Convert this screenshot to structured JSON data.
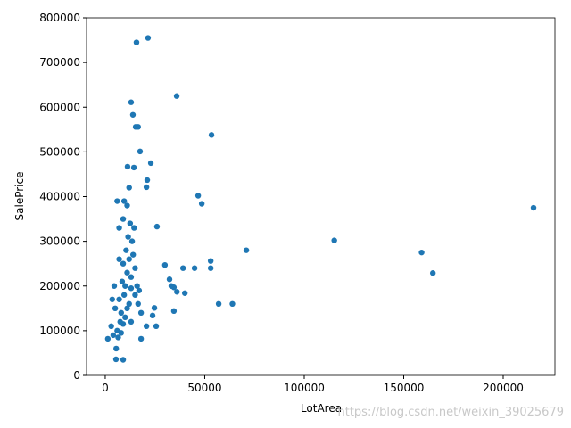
{
  "chart_data": {
    "type": "scatter",
    "x_label": "LotArea",
    "y_label": "SalePrice",
    "watermark": "https://blog.csdn.net/weixin_39025679",
    "color": "#1f77b4",
    "xlim": [
      -9400,
      226000
    ],
    "ylim": [
      0,
      800000
    ],
    "xticks": [
      0,
      50000,
      100000,
      150000,
      200000
    ],
    "yticks": [
      0,
      100000,
      200000,
      300000,
      400000,
      500000,
      600000,
      700000,
      800000
    ],
    "x": [
      215245,
      164660,
      159000,
      115100,
      70900,
      63900,
      57000,
      53400,
      53000,
      53000,
      48500,
      46700,
      44900,
      39100,
      40000,
      35900,
      21500,
      15700,
      13000,
      13900,
      15300,
      16500,
      17500,
      22900,
      21100,
      20700,
      26000,
      34500,
      36000,
      34500,
      32300,
      33200,
      30000,
      24700,
      25600,
      23800,
      20700,
      18000,
      5400,
      9000,
      1300,
      11200,
      14400,
      8000,
      9500,
      10000,
      11000,
      12000,
      7500,
      6000,
      4000,
      3000,
      5000,
      7000,
      8500,
      9000,
      10500,
      11500,
      12500,
      13500,
      14000,
      15000,
      16000,
      17000,
      13000,
      12000,
      10000,
      9000,
      8000,
      6500,
      11000,
      9500,
      6000,
      7000,
      14500,
      16500,
      18000,
      13000,
      5500,
      4500,
      3500,
      7000,
      11000,
      15000,
      9000,
      12000,
      13000
    ],
    "y": [
      375000,
      228950,
      275000,
      302000,
      280000,
      160000,
      160000,
      538000,
      256000,
      240000,
      384000,
      402000,
      240000,
      240000,
      184000,
      625000,
      755000,
      745000,
      611000,
      583000,
      556000,
      556000,
      501000,
      475000,
      437000,
      421000,
      333000,
      197000,
      187000,
      144000,
      215000,
      200000,
      247000,
      151000,
      110000,
      134000,
      110000,
      82000,
      36000,
      34900,
      82000,
      467000,
      465000,
      140000,
      180000,
      200000,
      230000,
      260000,
      120000,
      100000,
      90000,
      110000,
      150000,
      170000,
      210000,
      250000,
      280000,
      310000,
      340000,
      300000,
      270000,
      240000,
      200000,
      190000,
      220000,
      160000,
      130000,
      115000,
      95000,
      85000,
      380000,
      390000,
      390000,
      330000,
      330000,
      160000,
      140000,
      120000,
      60000,
      200000,
      170000,
      260000,
      150000,
      180000,
      350000,
      420000,
      195000
    ]
  }
}
